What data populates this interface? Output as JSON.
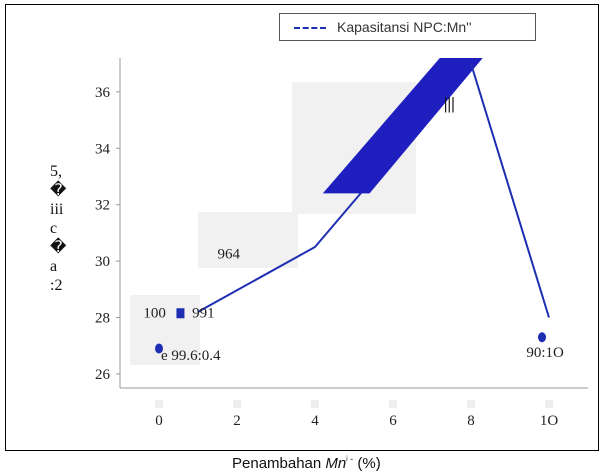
{
  "chart_data": {
    "type": "line",
    "title": "",
    "xlabel": "Penambahan Mn²⁺ (%)",
    "ylabel": "",
    "ylabel_fragments": [
      "5,",
      "�",
      "iii",
      "c",
      "�",
      "a",
      ":2"
    ],
    "xlim": [
      -1,
      11
    ],
    "ylim": [
      25.5,
      37.2
    ],
    "x_ticks": [
      0,
      2,
      4,
      6,
      8,
      10
    ],
    "x_tick_labels": [
      "0",
      "2",
      "4",
      "6",
      "8",
      "1O"
    ],
    "y_ticks": [
      26,
      28,
      30,
      32,
      34,
      36
    ],
    "y_tick_labels": [
      "26",
      "28",
      "30",
      "32",
      "34",
      "36"
    ],
    "legend_position": "top-right",
    "grid": false,
    "series": [
      {
        "name": "Kapasitansi NPC:Mn''",
        "color": "#1d2eb3",
        "x": [
          0,
          0.4,
          1,
          4,
          8,
          10
        ],
        "y": [
          26.9,
          27.8,
          28.2,
          30.5,
          37.0,
          28.0
        ],
        "labels": [
          "e 99.6:0.4",
          "100",
          "991",
          "964",
          "",
          "90:1O"
        ]
      }
    ],
    "annotations": [
      "100",
      "991",
      "964",
      "e 99.6:0.4",
      "90:1O"
    ]
  },
  "legend": {
    "label": "Kapasitansi NPC:Mn''",
    "swatch_color": "#1d2eb3"
  },
  "axis_titles": {
    "x": "Penambahan Mn²⁺ (%)",
    "x_base": "Penambahan ",
    "x_mn": "Mn",
    "x_sup": "ʲ -",
    "x_unit": " (%)"
  }
}
